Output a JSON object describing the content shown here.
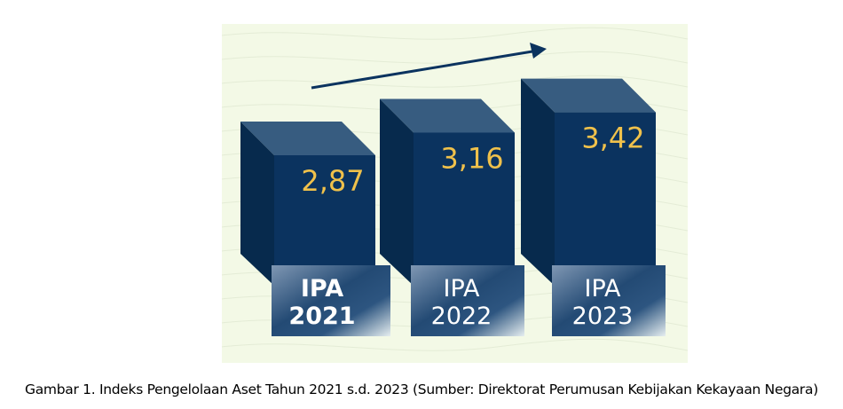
{
  "chart_data": {
    "type": "bar",
    "title": "",
    "categories": [
      "IPA 2021",
      "IPA 2022",
      "IPA 2023"
    ],
    "category_lines": [
      [
        "IPA",
        "2021"
      ],
      [
        "IPA",
        "2022"
      ],
      [
        "IPA",
        "2023"
      ]
    ],
    "values": [
      2.87,
      3.16,
      3.42
    ],
    "value_labels": [
      "2,87",
      "3,16",
      "3,42"
    ],
    "trend": "increasing",
    "colors": {
      "bar_front": "#0b335f",
      "bar_side": "#072a4d",
      "bar_top": "#375c80",
      "value_text": "#f0c14b",
      "background": "#f3f9e6"
    }
  },
  "caption": "Gambar 1. Indeks Pengelolaan Aset Tahun 2021 s.d. 2023 (Sumber: Direktorat Perumusan Kebijakan Kekayaan Negara)"
}
